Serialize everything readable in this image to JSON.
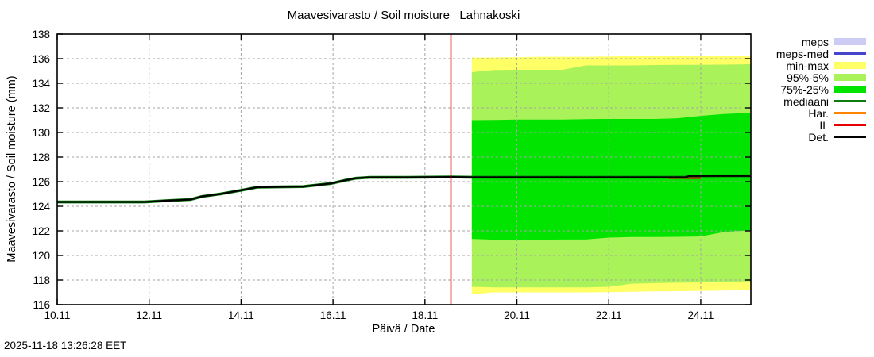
{
  "timestamp": "2025-11-18 13:26:28 EET",
  "legend": {
    "items": [
      {
        "label": "meps",
        "type": "band",
        "color": "#ccccf5"
      },
      {
        "label": "meps-med",
        "type": "line",
        "color": "#4444cc"
      },
      {
        "label": "min-max",
        "type": "band",
        "color": "#ffff66"
      },
      {
        "label": "95%-5%",
        "type": "band",
        "color": "#aaf25a"
      },
      {
        "label": "75%-25%",
        "type": "band",
        "color": "#00e400"
      },
      {
        "label": "mediaani",
        "type": "line",
        "color": "#0d7d0d"
      },
      {
        "label": "Har.",
        "type": "line",
        "color": "#ff8400"
      },
      {
        "label": "IL",
        "type": "line",
        "color": "#e60000"
      },
      {
        "label": "Det.",
        "type": "line",
        "color": "#000000"
      }
    ]
  },
  "chart_data": {
    "type": "line",
    "title": "Maavesivarasto / Soil moisture   Lahnakoski",
    "xlabel": "Päivä / Date",
    "ylabel": "Maavesivarasto / Soil moisture (mm)",
    "x_unit": "day of November 2025 (dd.11)",
    "x_range": [
      10,
      25.09
    ],
    "y_range": [
      116,
      138
    ],
    "y_ticks": [
      116,
      118,
      120,
      122,
      124,
      126,
      128,
      130,
      132,
      134,
      136,
      138
    ],
    "x_ticks": [
      {
        "value": 10,
        "label": "10.11"
      },
      {
        "value": 12,
        "label": "12.11"
      },
      {
        "value": 14,
        "label": "14.11"
      },
      {
        "value": 16,
        "label": "16.11"
      },
      {
        "value": 18,
        "label": "18.11"
      },
      {
        "value": 20,
        "label": "20.11"
      },
      {
        "value": 22,
        "label": "22.11"
      },
      {
        "value": 24,
        "label": "24.11"
      }
    ],
    "grid": {
      "style": "dashed",
      "color": "#a4a4a4"
    },
    "now_line": {
      "x": 18.565,
      "color": "#dd0000"
    },
    "forecast_start": 19.02,
    "forecast_x": [
      19.02,
      19.5,
      20,
      20.5,
      21,
      21.5,
      22,
      22.5,
      23,
      23.5,
      24,
      24.5,
      25.09
    ],
    "bands": [
      {
        "name": "min-max",
        "color": "#ffff66",
        "upper": [
          136.1,
          136.1,
          136.12,
          136.15,
          136.15,
          136.15,
          136.18,
          136.2,
          136.2,
          136.2,
          136.2,
          136.2,
          136.2
        ],
        "lower": [
          116.85,
          117.0,
          117.0,
          117.0,
          117.0,
          117.0,
          117.02,
          117.05,
          117.08,
          117.1,
          117.12,
          117.15,
          117.18
        ]
      },
      {
        "name": "95%-5%",
        "color": "#aaf25a",
        "upper": [
          134.9,
          135.08,
          135.1,
          135.1,
          135.1,
          135.45,
          135.45,
          135.45,
          135.48,
          135.5,
          135.5,
          135.52,
          135.55
        ],
        "lower": [
          117.45,
          117.4,
          117.4,
          117.4,
          117.4,
          117.4,
          117.45,
          117.7,
          117.75,
          117.78,
          117.8,
          117.85,
          117.9
        ]
      },
      {
        "name": "75%-25%",
        "color": "#00e400",
        "upper": [
          131.0,
          131.02,
          131.05,
          131.05,
          131.05,
          131.08,
          131.1,
          131.1,
          131.1,
          131.15,
          131.35,
          131.5,
          131.6
        ],
        "lower": [
          121.35,
          121.28,
          121.28,
          121.28,
          121.3,
          121.3,
          121.45,
          121.5,
          121.5,
          121.52,
          121.55,
          121.9,
          122.05
        ]
      }
    ],
    "det_series": {
      "name": "Det.",
      "color": "#000000",
      "x": [
        10.0,
        11.9,
        12.35,
        12.9,
        13.15,
        13.55,
        14.0,
        14.35,
        15.35,
        15.95,
        16.25,
        16.5,
        16.8,
        17.6,
        18.56,
        19.02,
        23.0,
        23.5,
        23.67,
        23.75,
        24.5,
        25.09
      ],
      "values": [
        124.35,
        124.35,
        124.45,
        124.55,
        124.8,
        125.0,
        125.3,
        125.55,
        125.6,
        125.85,
        126.1,
        126.28,
        126.35,
        126.35,
        126.38,
        126.36,
        126.36,
        126.36,
        126.36,
        126.46,
        126.47,
        126.47
      ]
    },
    "mediaani": {
      "name": "mediaani",
      "color": "#0d7d0d",
      "coincides_with": "Det."
    },
    "il_segment": {
      "name": "IL",
      "color": "#e60000",
      "x": [
        23.3,
        24.0
      ],
      "value": 126.3
    },
    "legend_position": "outside-right"
  }
}
